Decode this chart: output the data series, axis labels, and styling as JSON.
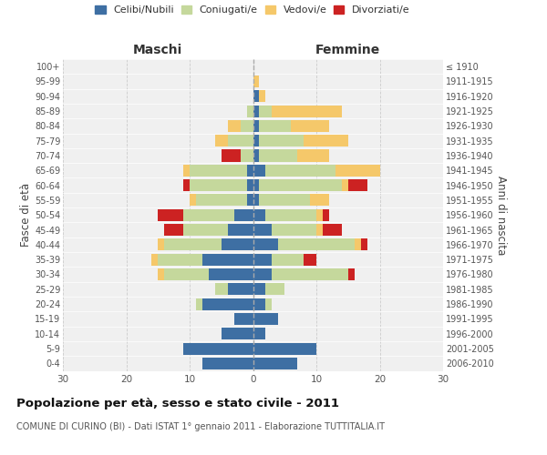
{
  "age_groups": [
    "0-4",
    "5-9",
    "10-14",
    "15-19",
    "20-24",
    "25-29",
    "30-34",
    "35-39",
    "40-44",
    "45-49",
    "50-54",
    "55-59",
    "60-64",
    "65-69",
    "70-74",
    "75-79",
    "80-84",
    "85-89",
    "90-94",
    "95-99",
    "100+"
  ],
  "birth_years": [
    "2006-2010",
    "2001-2005",
    "1996-2000",
    "1991-1995",
    "1986-1990",
    "1981-1985",
    "1976-1980",
    "1971-1975",
    "1966-1970",
    "1961-1965",
    "1956-1960",
    "1951-1955",
    "1946-1950",
    "1941-1945",
    "1936-1940",
    "1931-1935",
    "1926-1930",
    "1921-1925",
    "1916-1920",
    "1911-1915",
    "≤ 1910"
  ],
  "male": {
    "celibi": [
      8,
      11,
      5,
      3,
      8,
      4,
      7,
      8,
      5,
      4,
      3,
      1,
      1,
      1,
      0,
      0,
      0,
      0,
      0,
      0,
      0
    ],
    "coniugati": [
      0,
      0,
      0,
      0,
      1,
      2,
      7,
      7,
      9,
      7,
      8,
      8,
      9,
      9,
      2,
      4,
      2,
      1,
      0,
      0,
      0
    ],
    "vedovi": [
      0,
      0,
      0,
      0,
      0,
      0,
      1,
      1,
      1,
      0,
      0,
      1,
      0,
      1,
      0,
      2,
      2,
      0,
      0,
      0,
      0
    ],
    "divorziati": [
      0,
      0,
      0,
      0,
      0,
      0,
      0,
      0,
      0,
      3,
      4,
      0,
      1,
      0,
      3,
      0,
      0,
      0,
      0,
      0,
      0
    ]
  },
  "female": {
    "nubili": [
      7,
      10,
      2,
      4,
      2,
      2,
      3,
      3,
      4,
      3,
      2,
      1,
      1,
      2,
      1,
      1,
      1,
      1,
      1,
      0,
      0
    ],
    "coniugate": [
      0,
      0,
      0,
      0,
      1,
      3,
      12,
      5,
      12,
      7,
      8,
      8,
      13,
      11,
      6,
      7,
      5,
      2,
      0,
      0,
      0
    ],
    "vedove": [
      0,
      0,
      0,
      0,
      0,
      0,
      0,
      0,
      1,
      1,
      1,
      3,
      1,
      7,
      5,
      7,
      6,
      11,
      1,
      1,
      0
    ],
    "divorziate": [
      0,
      0,
      0,
      0,
      0,
      0,
      1,
      2,
      1,
      3,
      1,
      0,
      3,
      0,
      0,
      0,
      0,
      0,
      0,
      0,
      0
    ]
  },
  "colors": {
    "celibi": "#3e6fa3",
    "coniugati": "#c5d89c",
    "vedovi": "#f5c86a",
    "divorziati": "#cc2222"
  },
  "xlim": 30,
  "title": "Popolazione per età, sesso e stato civile - 2011",
  "subtitle": "COMUNE DI CURINO (BI) - Dati ISTAT 1° gennaio 2011 - Elaborazione TUTTITALIA.IT",
  "ylabel_left": "Fasce di età",
  "ylabel_right": "Anni di nascita",
  "xlabel_left": "Maschi",
  "xlabel_right": "Femmine",
  "bg_color": "#f0f0f0",
  "grid_color": "#cccccc"
}
